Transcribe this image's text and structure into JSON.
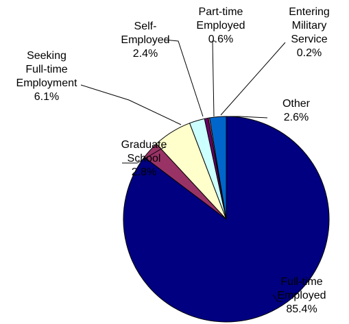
{
  "chart_data": {
    "type": "pie",
    "title": "",
    "slices": [
      {
        "label": [
          "Full-time",
          "Employed"
        ],
        "value": 85.4,
        "value_label": "85.4%",
        "color": "#000080"
      },
      {
        "label": [
          "Graduate",
          "School"
        ],
        "value": 2.8,
        "value_label": "2.8%",
        "color": "#993366"
      },
      {
        "label": [
          "Seeking",
          "Full-time",
          "Employment"
        ],
        "value": 6.1,
        "value_label": "6.1%",
        "color": "#FFFFCC"
      },
      {
        "label": [
          "Self-",
          "Employed"
        ],
        "value": 2.4,
        "value_label": "2.4%",
        "color": "#CCFFFF"
      },
      {
        "label": [
          "Part-time",
          "Employed"
        ],
        "value": 0.6,
        "value_label": "0.6%",
        "color": "#660066"
      },
      {
        "label": [
          "Entering",
          "Military",
          "Service"
        ],
        "value": 0.2,
        "value_label": "0.2%",
        "color": "#FF8080"
      },
      {
        "label": [
          "Other"
        ],
        "value": 2.6,
        "value_label": "2.6%",
        "color": "#0066CC"
      }
    ],
    "legend": "none"
  }
}
